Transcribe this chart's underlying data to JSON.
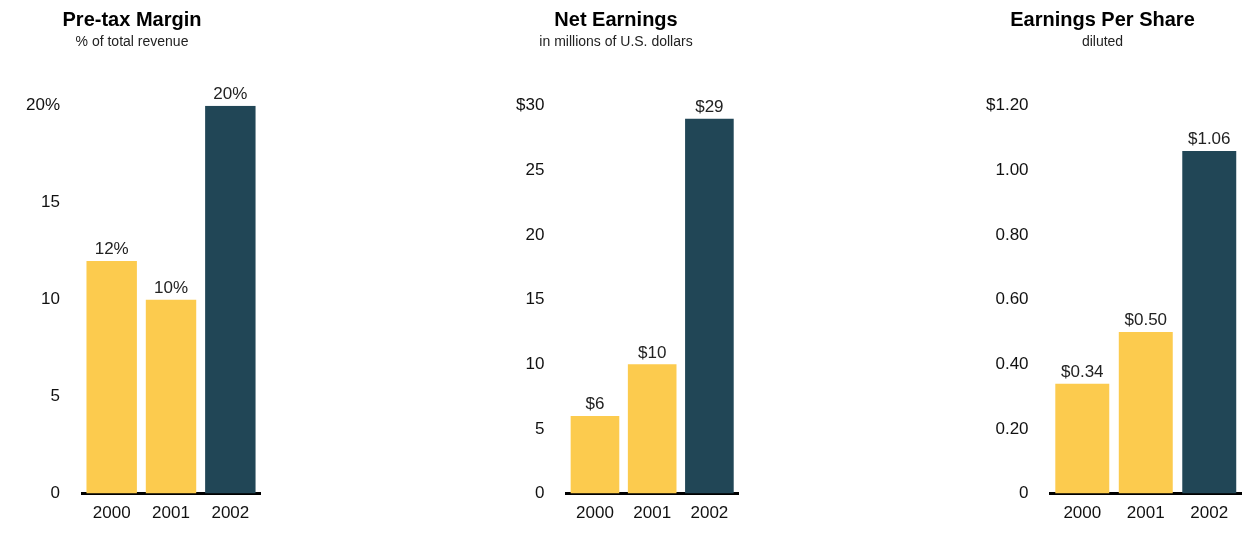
{
  "chart_data": [
    {
      "type": "bar",
      "title": "Pre-tax Margin",
      "subtitle": "% of total revenue",
      "categories": [
        "2000",
        "2001",
        "2002"
      ],
      "values": [
        12,
        10,
        20
      ],
      "colors": [
        "#fccb4e",
        "#fccb4e",
        "#214656"
      ],
      "value_labels": [
        "12%",
        "10%",
        "20%"
      ],
      "ylim": [
        0,
        20
      ],
      "yticks": [
        0,
        5,
        10,
        15,
        {
          "value": 20,
          "label": "20%"
        }
      ],
      "grid": false,
      "legend": false
    },
    {
      "type": "bar",
      "title": "Net Earnings",
      "subtitle": "in millions of U.S. dollars",
      "categories": [
        "2000",
        "2001",
        "2002"
      ],
      "values": [
        6,
        10,
        29
      ],
      "colors": [
        "#fccb4e",
        "#fccb4e",
        "#214656"
      ],
      "value_labels": [
        "$6",
        "$10",
        "$29"
      ],
      "ylim": [
        0,
        30
      ],
      "yticks": [
        0,
        5,
        10,
        15,
        20,
        25,
        {
          "value": 30,
          "label": "$30"
        }
      ],
      "grid": false,
      "legend": false
    },
    {
      "type": "bar",
      "title": "Earnings Per Share",
      "subtitle": "diluted",
      "categories": [
        "2000",
        "2001",
        "2002"
      ],
      "values": [
        0.34,
        0.5,
        1.06
      ],
      "colors": [
        "#fccb4e",
        "#fccb4e",
        "#214656"
      ],
      "value_labels": [
        "$0.34",
        "$0.50",
        "$1.06"
      ],
      "ylim": [
        0,
        1.2
      ],
      "yticks": [
        0,
        {
          "value": 0.2,
          "label": "0.20"
        },
        {
          "value": 0.4,
          "label": "0.40"
        },
        {
          "value": 0.6,
          "label": "0.60"
        },
        {
          "value": 0.8,
          "label": "0.80"
        },
        {
          "value": 1,
          "label": "1.00"
        },
        {
          "value": 1.2,
          "label": "$1.20"
        }
      ],
      "grid": false,
      "legend": false
    }
  ]
}
